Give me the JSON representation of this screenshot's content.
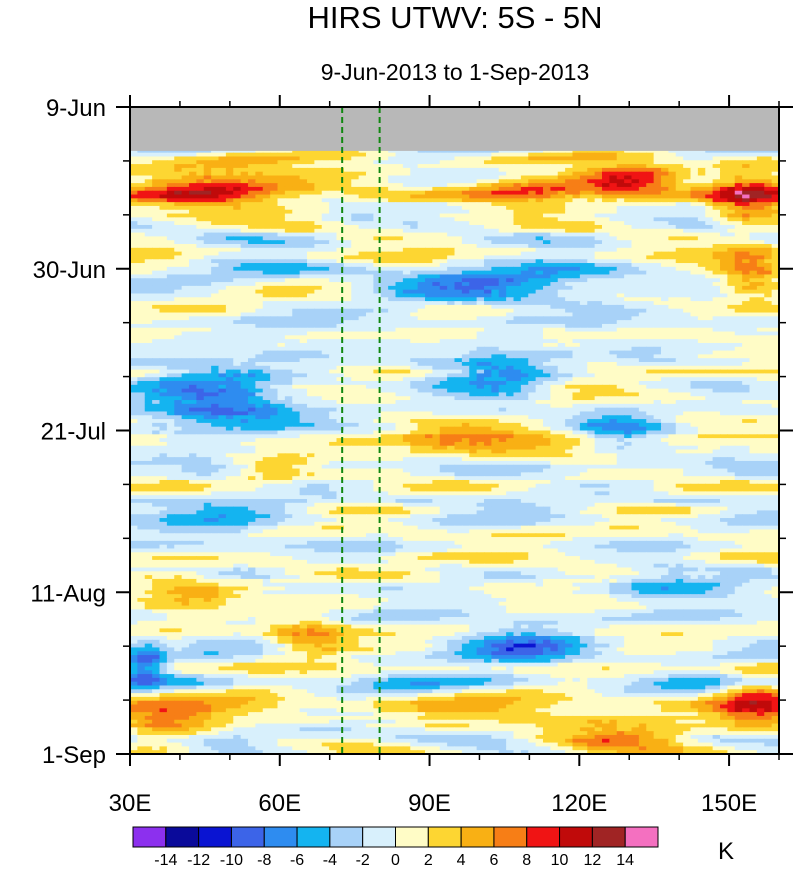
{
  "chart_data": {
    "type": "heatmap",
    "title": "HIRS UTWV: 5S - 5N",
    "subtitle": "9-Jun-2013 to 1-Sep-2013",
    "x_axis": {
      "range": [
        30,
        160
      ],
      "ticks": [
        {
          "value": 30,
          "label": "30E"
        },
        {
          "value": 60,
          "label": "60E"
        },
        {
          "value": 90,
          "label": "90E"
        },
        {
          "value": 120,
          "label": "120E"
        },
        {
          "value": 150,
          "label": "150E"
        }
      ]
    },
    "y_axis": {
      "range_days": [
        0,
        84
      ],
      "orientation": "time increases downward",
      "ticks": [
        {
          "value": 0,
          "label": "9-Jun"
        },
        {
          "value": 21,
          "label": "30-Jun"
        },
        {
          "value": 42,
          "label": "21-Jul"
        },
        {
          "value": 63,
          "label": "11-Aug"
        },
        {
          "value": 84,
          "label": "1-Sep"
        }
      ]
    },
    "reference_lines": [
      {
        "orientation": "vertical",
        "x": 72.5,
        "style": "dashed",
        "color": "#118811"
      },
      {
        "orientation": "vertical",
        "x": 80,
        "style": "dashed",
        "color": "#118811"
      }
    ],
    "missing_data": {
      "color": "#b8b8b8",
      "days": [
        0,
        5.7
      ],
      "note": "no data at start of period"
    },
    "colorbar": {
      "unit": "K",
      "labels": [
        "-14",
        "-12",
        "-10",
        "-8",
        "-6",
        "-4",
        "-2",
        "0",
        "2",
        "4",
        "6",
        "8",
        "10",
        "12",
        "14"
      ],
      "colors": [
        "#8c30ee",
        "#0a0a9a",
        "#0a14d2",
        "#3c64e8",
        "#2e8cf0",
        "#14b4f0",
        "#a8d2f8",
        "#d8f0fc",
        "#fffcc6",
        "#fdd632",
        "#f9b014",
        "#f77e16",
        "#f01414",
        "#c00a0a",
        "#a02424",
        "#f470c0"
      ]
    },
    "anomaly_features": [
      {
        "lon": [
          31,
          58
        ],
        "day": [
          8,
          13
        ],
        "value": 8,
        "label": "warm"
      },
      {
        "lon": [
          148,
          160
        ],
        "day": [
          9,
          14
        ],
        "value": 10,
        "label": "warm"
      },
      {
        "lon": [
          123,
          139
        ],
        "day": [
          8,
          11
        ],
        "value": 8,
        "label": "warm"
      },
      {
        "lon": [
          100,
          122
        ],
        "day": [
          10,
          12
        ],
        "value": 5,
        "label": "warm"
      },
      {
        "lon": [
          150,
          160
        ],
        "day": [
          19,
          24
        ],
        "value": 8,
        "label": "warm"
      },
      {
        "lon": [
          80,
          125
        ],
        "day": [
          22,
          25
        ],
        "value": -7,
        "label": "moist"
      },
      {
        "lon": [
          34,
          64
        ],
        "day": [
          33,
          43
        ],
        "value": -8,
        "label": "moist"
      },
      {
        "lon": [
          94,
          114
        ],
        "day": [
          32,
          37
        ],
        "value": -8,
        "label": "moist"
      },
      {
        "lon": [
          120,
          135
        ],
        "day": [
          40,
          44
        ],
        "value": -5,
        "label": "moist"
      },
      {
        "lon": [
          82,
          112
        ],
        "day": [
          42,
          45
        ],
        "value": 5,
        "label": "warm"
      },
      {
        "lon": [
          52,
          64
        ],
        "day": [
          46,
          48
        ],
        "value": 5,
        "label": "warm"
      },
      {
        "lon": [
          31,
          49
        ],
        "day": [
          61,
          66
        ],
        "value": 5,
        "label": "warm"
      },
      {
        "lon": [
          59,
          72
        ],
        "day": [
          67,
          71
        ],
        "value": 6,
        "label": "warm"
      },
      {
        "lon": [
          31,
          44
        ],
        "day": [
          78,
          83
        ],
        "value": 5,
        "label": "warm"
      },
      {
        "lon": [
          112,
          140
        ],
        "day": [
          80,
          83
        ],
        "value": 7,
        "label": "warm"
      },
      {
        "lon": [
          150,
          160
        ],
        "day": [
          74,
          80
        ],
        "value": 6,
        "label": "warm"
      },
      {
        "lon": [
          31,
          35
        ],
        "day": [
          70,
          74
        ],
        "value": -8,
        "label": "moist"
      },
      {
        "lon": [
          98,
          120
        ],
        "day": [
          68,
          72
        ],
        "value": -6,
        "label": "moist"
      },
      {
        "lon": [
          128,
          150
        ],
        "day": [
          60,
          63
        ],
        "value": -5,
        "label": "moist"
      },
      {
        "lon": [
          30,
          60
        ],
        "day": [
          52,
          58
        ],
        "value": -3,
        "label": "moist"
      }
    ]
  }
}
